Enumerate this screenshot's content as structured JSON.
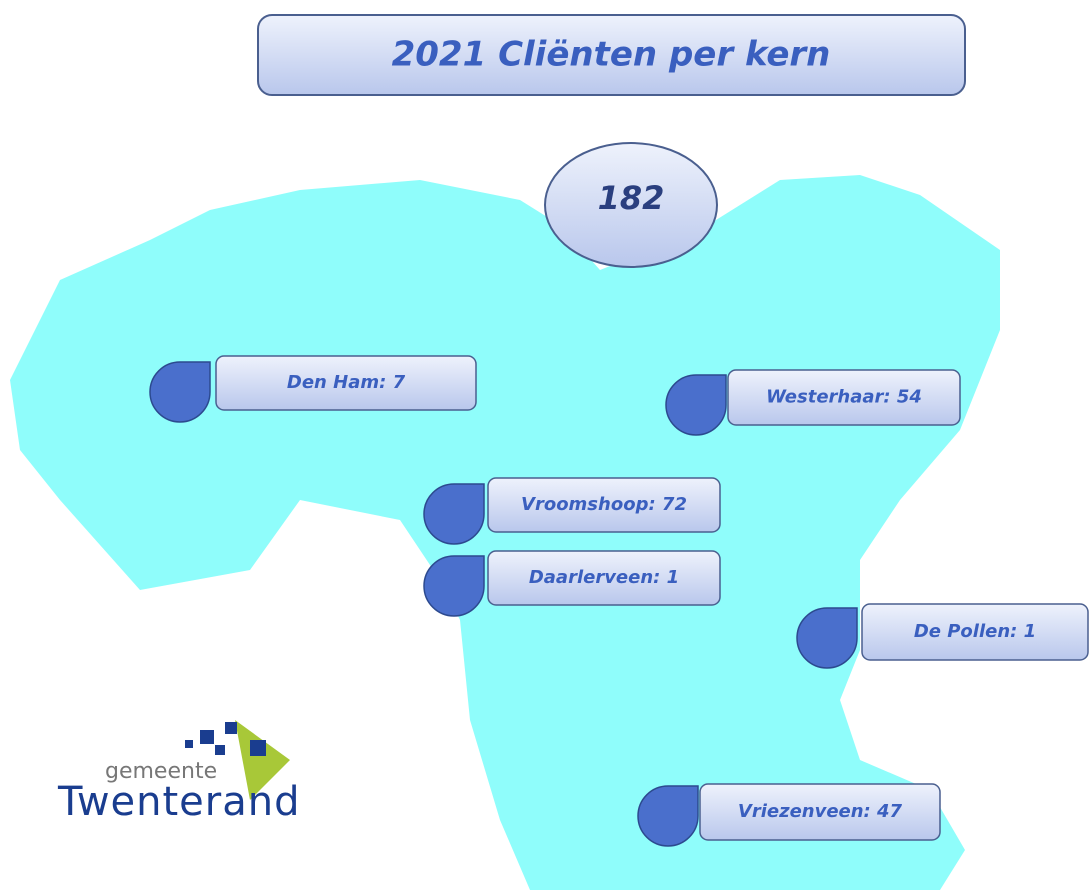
{
  "title": "2021 Cliënten per kern",
  "total": "182",
  "places": [
    {
      "label": "Den Ham: 7"
    },
    {
      "label": "Westerhaar: 54"
    },
    {
      "label": "Vroomshoop: 72"
    },
    {
      "label": "Daarlerveen: 1"
    },
    {
      "label": "De Pollen: 1"
    },
    {
      "label": "Vriezenveen: 47"
    }
  ],
  "logo": {
    "small": "gemeente",
    "name": "Twenterand"
  }
}
